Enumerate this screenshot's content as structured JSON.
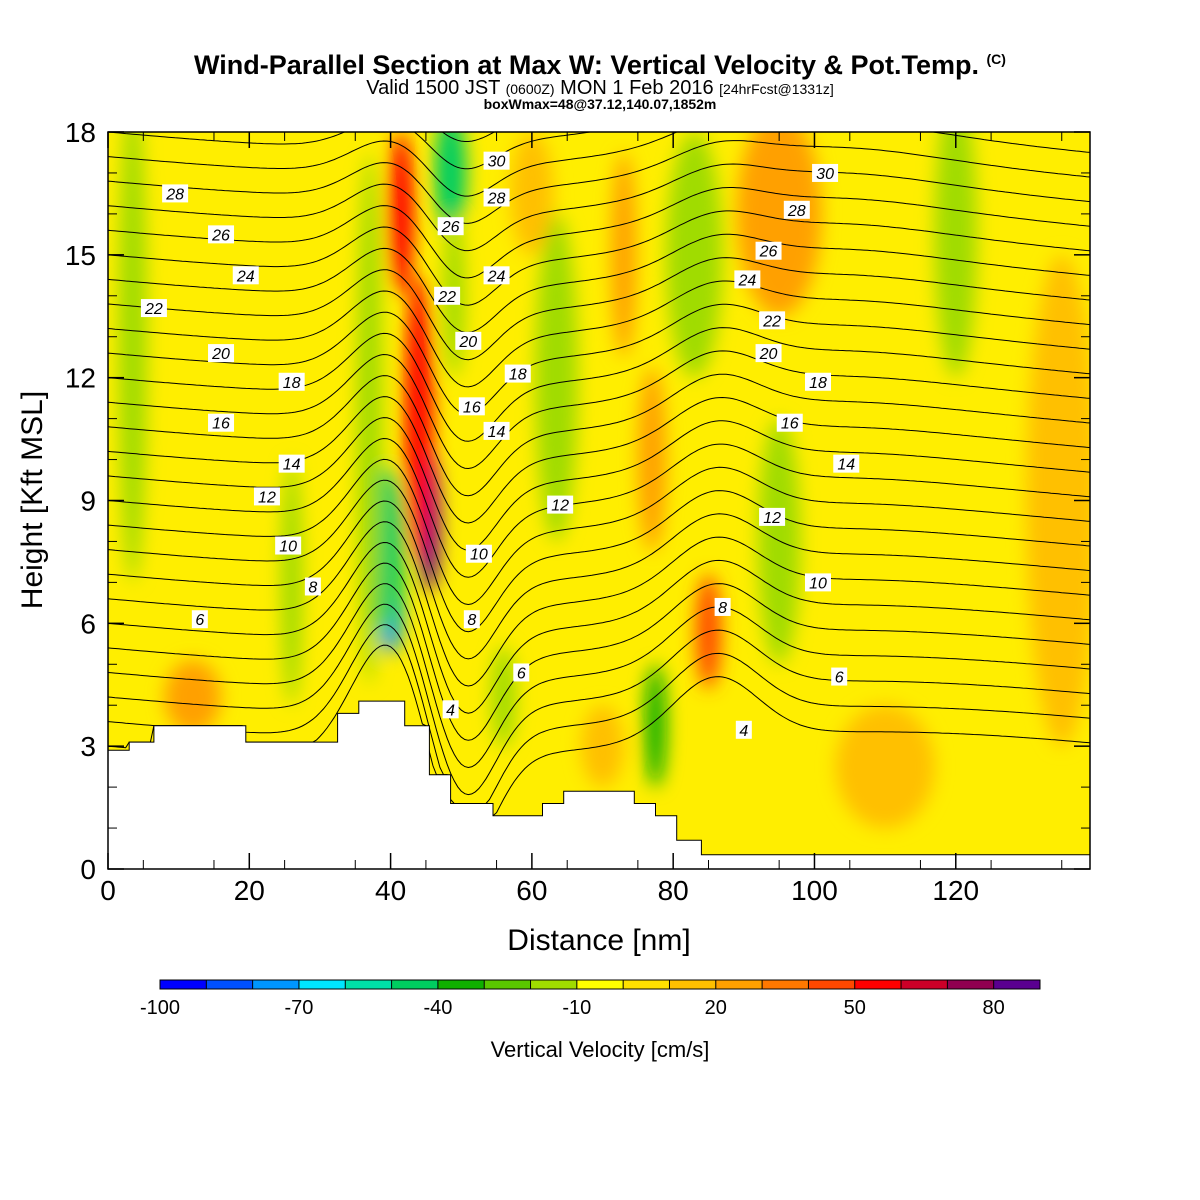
{
  "header": {
    "title": "Wind-Parallel Section at Max W: Vertical Velocity & Pot.Temp.",
    "copyright": "(C)",
    "valid_prefix": "Valid 1500 JST",
    "valid_zulu": "(0600Z)",
    "valid_date": "MON 1 Feb 2016",
    "forecast": "[24hrFcst@1331z]",
    "box_info": "boxWmax=48@37.12,140.07,1852m"
  },
  "chart_data": {
    "type": "heatmap",
    "xlabel": "Distance [nm]",
    "ylabel": "Height [Kft MSL]",
    "xlim": [
      0,
      139
    ],
    "ylim": [
      0,
      18
    ],
    "x_ticks": [
      0,
      20,
      40,
      60,
      80,
      100,
      120
    ],
    "y_ticks": [
      0,
      3,
      6,
      9,
      12,
      15,
      18
    ],
    "colorbar": {
      "label": "Vertical Velocity [cm/s]",
      "tick_values": [
        -100,
        -70,
        -40,
        -10,
        20,
        50,
        80
      ],
      "tick_labels": [
        "-100",
        "-70",
        "-40",
        "-10",
        "20",
        "50",
        "80"
      ],
      "min": -100,
      "max": 90,
      "step": 10,
      "colors": [
        "#0000ff",
        "#0050ff",
        "#0096ff",
        "#00e6ff",
        "#00e0a8",
        "#00cd60",
        "#10b000",
        "#5ac800",
        "#a0dc00",
        "#ffff00",
        "#ffe000",
        "#ffc000",
        "#ffa000",
        "#ff7800",
        "#ff4800",
        "#ff0000",
        "#cc0028",
        "#900050",
        "#5a0090"
      ]
    },
    "terrain": [
      [
        0,
        2.9
      ],
      [
        3,
        2.9
      ],
      [
        3,
        3.1
      ],
      [
        6.5,
        3.1
      ],
      [
        6.5,
        3.5
      ],
      [
        19.5,
        3.5
      ],
      [
        19.5,
        3.1
      ],
      [
        32.5,
        3.1
      ],
      [
        32.5,
        3.8
      ],
      [
        35.5,
        3.8
      ],
      [
        35.5,
        4.1
      ],
      [
        42,
        4.1
      ],
      [
        42,
        3.5
      ],
      [
        45.5,
        3.5
      ],
      [
        45.5,
        2.3
      ],
      [
        48.5,
        2.3
      ],
      [
        48.5,
        1.6
      ],
      [
        54.5,
        1.6
      ],
      [
        54.5,
        1.3
      ],
      [
        61.5,
        1.3
      ],
      [
        61.5,
        1.6
      ],
      [
        64.5,
        1.6
      ],
      [
        64.5,
        1.9
      ],
      [
        74.5,
        1.9
      ],
      [
        74.5,
        1.6
      ],
      [
        77.5,
        1.6
      ],
      [
        77.5,
        1.3
      ],
      [
        80.5,
        1.3
      ],
      [
        80.5,
        0.7
      ],
      [
        84,
        0.7
      ],
      [
        84,
        0.35
      ],
      [
        139,
        0.35
      ]
    ],
    "velocity_features": [
      {
        "x": 45.5,
        "y": 8.5,
        "w": 3,
        "h": 3.5,
        "value": 85
      },
      {
        "x": 44,
        "y": 11,
        "w": 4,
        "h": 7,
        "value": 55
      },
      {
        "x": 41.5,
        "y": 16,
        "w": 3.5,
        "h": 4,
        "value": 55
      },
      {
        "x": 73,
        "y": 15,
        "w": 3.5,
        "h": 5,
        "value": 25
      },
      {
        "x": 77,
        "y": 10,
        "w": 4,
        "h": 4.5,
        "value": 25
      },
      {
        "x": 85,
        "y": 5.8,
        "w": 3.5,
        "h": 2.8,
        "value": 40
      },
      {
        "x": 40,
        "y": 6.5,
        "w": 3.5,
        "h": 2.5,
        "value": -75
      },
      {
        "x": 39.5,
        "y": 7.8,
        "w": 5,
        "h": 4,
        "value": -45
      },
      {
        "x": 48.5,
        "y": 17,
        "w": 4.5,
        "h": 3,
        "value": -45
      },
      {
        "x": 49,
        "y": 14,
        "w": 3,
        "h": 4,
        "value": -20
      },
      {
        "x": 77.5,
        "y": 3.5,
        "w": 3,
        "h": 3,
        "value": -40
      },
      {
        "x": 3.5,
        "y": 13,
        "w": 4,
        "h": 12,
        "value": -15
      },
      {
        "x": 26,
        "y": 7,
        "w": 3,
        "h": 6,
        "value": -15
      },
      {
        "x": 37,
        "y": 11,
        "w": 3.5,
        "h": 13,
        "value": -15
      },
      {
        "x": 63.5,
        "y": 12,
        "w": 6,
        "h": 8,
        "value": -15
      },
      {
        "x": 83,
        "y": 15,
        "w": 8,
        "h": 6,
        "value": -15
      },
      {
        "x": 95,
        "y": 8,
        "w": 6,
        "h": 6,
        "value": -15
      },
      {
        "x": 120,
        "y": 15.5,
        "w": 6,
        "h": 7,
        "value": -15
      },
      {
        "x": 56,
        "y": 4.2,
        "w": 3.5,
        "h": 2.5,
        "value": -15
      },
      {
        "x": 95,
        "y": 16,
        "w": 12,
        "h": 5,
        "value": 20
      },
      {
        "x": 135,
        "y": 9,
        "w": 10,
        "h": 12,
        "value": 15
      },
      {
        "x": 60,
        "y": 16.5,
        "w": 6,
        "h": 3,
        "value": 15
      },
      {
        "x": 12,
        "y": 4.2,
        "w": 8,
        "h": 1.8,
        "value": 20
      },
      {
        "x": 110,
        "y": 2.5,
        "w": 14,
        "h": 3,
        "value": 15
      },
      {
        "x": 70,
        "y": 3,
        "w": 6,
        "h": 2,
        "value": 15
      }
    ],
    "isentropes": {
      "levels": [
        3,
        4,
        5,
        6,
        7,
        8,
        9,
        10,
        11,
        12,
        13,
        14,
        15,
        16,
        17,
        18,
        19,
        20,
        21,
        22,
        23,
        24,
        25,
        26,
        27,
        28,
        29,
        30,
        31
      ],
      "labels": [
        {
          "text": "28",
          "x": 9.5,
          "y": 16.5
        },
        {
          "text": "26",
          "x": 16,
          "y": 15.5
        },
        {
          "text": "24",
          "x": 19.5,
          "y": 14.5
        },
        {
          "text": "22",
          "x": 6.5,
          "y": 13.7
        },
        {
          "text": "20",
          "x": 16,
          "y": 12.6
        },
        {
          "text": "18",
          "x": 26,
          "y": 11.9
        },
        {
          "text": "16",
          "x": 16,
          "y": 10.9
        },
        {
          "text": "14",
          "x": 26,
          "y": 9.9
        },
        {
          "text": "12",
          "x": 22.5,
          "y": 9.1
        },
        {
          "text": "10",
          "x": 25.5,
          "y": 7.9
        },
        {
          "text": "8",
          "x": 29,
          "y": 6.9
        },
        {
          "text": "6",
          "x": 13,
          "y": 6.1
        },
        {
          "text": "30",
          "x": 55,
          "y": 17.3
        },
        {
          "text": "28",
          "x": 55,
          "y": 16.4
        },
        {
          "text": "26",
          "x": 48.5,
          "y": 15.7
        },
        {
          "text": "24",
          "x": 55,
          "y": 14.5
        },
        {
          "text": "22",
          "x": 48,
          "y": 14.0
        },
        {
          "text": "20",
          "x": 51,
          "y": 12.9
        },
        {
          "text": "18",
          "x": 58,
          "y": 12.1
        },
        {
          "text": "16",
          "x": 51.5,
          "y": 11.3
        },
        {
          "text": "14",
          "x": 55,
          "y": 10.7
        },
        {
          "text": "12",
          "x": 64,
          "y": 8.9
        },
        {
          "text": "10",
          "x": 52.5,
          "y": 7.7
        },
        {
          "text": "8",
          "x": 51.5,
          "y": 6.1
        },
        {
          "text": "6",
          "x": 58.5,
          "y": 4.8
        },
        {
          "text": "4",
          "x": 48.5,
          "y": 3.9
        },
        {
          "text": "30",
          "x": 101.5,
          "y": 17.0
        },
        {
          "text": "28",
          "x": 97.5,
          "y": 16.1
        },
        {
          "text": "26",
          "x": 93.5,
          "y": 15.1
        },
        {
          "text": "24",
          "x": 90.5,
          "y": 14.4
        },
        {
          "text": "22",
          "x": 94,
          "y": 13.4
        },
        {
          "text": "20",
          "x": 93.5,
          "y": 12.6
        },
        {
          "text": "18",
          "x": 100.5,
          "y": 11.9
        },
        {
          "text": "16",
          "x": 96.5,
          "y": 10.9
        },
        {
          "text": "14",
          "x": 104.5,
          "y": 9.9
        },
        {
          "text": "12",
          "x": 94,
          "y": 8.6
        },
        {
          "text": "10",
          "x": 100.5,
          "y": 7.0
        },
        {
          "text": "8",
          "x": 87,
          "y": 6.4
        },
        {
          "text": "6",
          "x": 103.5,
          "y": 4.7
        },
        {
          "text": "4",
          "x": 90,
          "y": 3.4
        }
      ]
    }
  }
}
